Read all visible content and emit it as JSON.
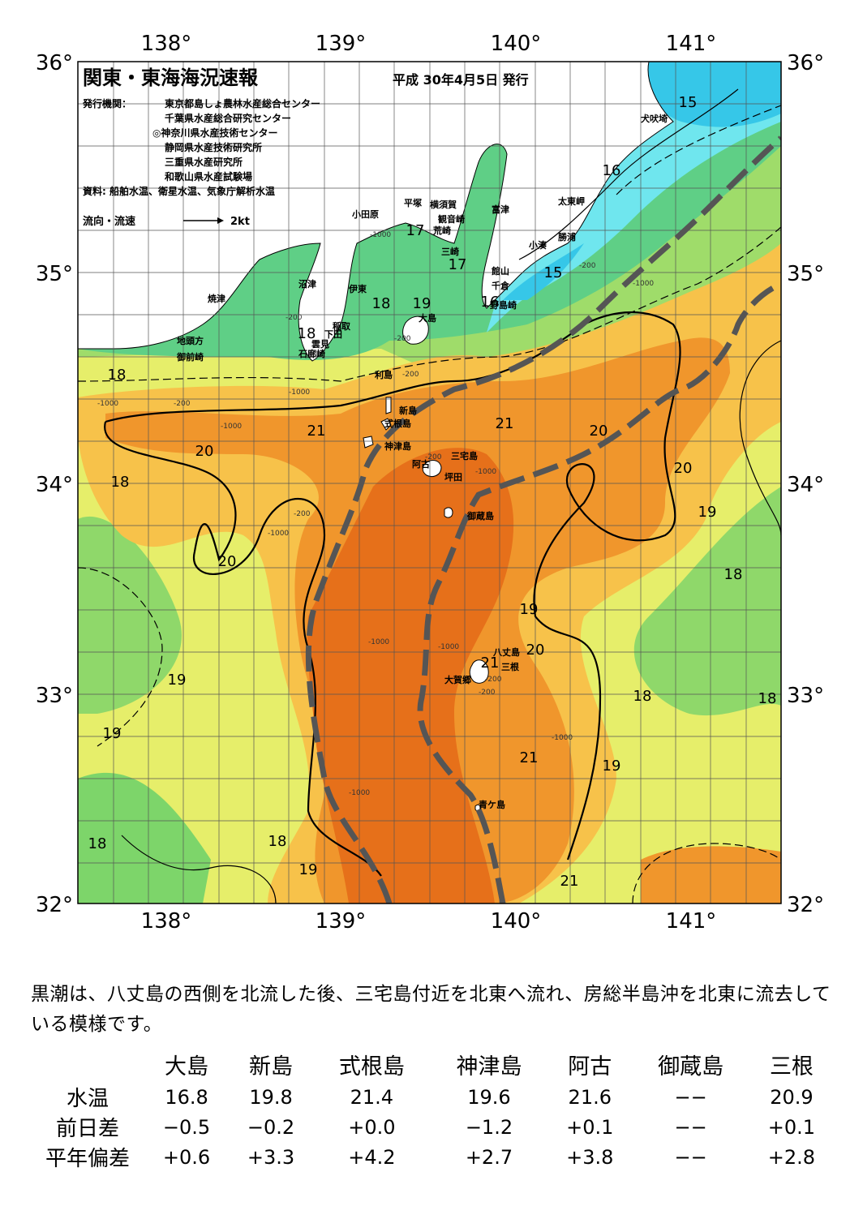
{
  "title": "関東・東海海況速報",
  "issue_date": "平成 30年4月5日 発行",
  "issuers_label": "発行機関：",
  "issuers": [
    "東京都島しょ農林水産総合センター",
    "千葉県水産総合研究センター",
    "◎神奈川県水産技術センター",
    "静岡県水産技術研究所",
    "三重県水産研究所",
    "和歌山県水産試験場"
  ],
  "sources": "資料: 船舶水温、衛星水温、気象庁解析水温",
  "flow_legend": {
    "label": "流向・流速",
    "scale": "2kt"
  },
  "axes": {
    "lon_ticks": [
      "138°",
      "139°",
      "140°",
      "141°"
    ],
    "lat_ticks": [
      "36°",
      "35°",
      "34°",
      "33°",
      "32°"
    ]
  },
  "place_names": [
    "犬吠埼",
    "太東岬",
    "勝浦",
    "小湊",
    "富津",
    "館山",
    "千倉",
    "野島崎",
    "観音崎",
    "横須賀",
    "荒崎",
    "三崎",
    "平塚",
    "小田原",
    "沼津",
    "伊東",
    "稲取",
    "下田",
    "石廊崎",
    "雲見",
    "焼津",
    "地頭方",
    "御前崎",
    "大島",
    "利島",
    "新島",
    "式根島",
    "神津島",
    "三宅島",
    "阿古",
    "坪田",
    "御蔵島",
    "八丈島",
    "三根",
    "大賀郷",
    "青ケ島"
  ],
  "contour_labels": {
    "temperature": [
      "15",
      "16",
      "15",
      "17",
      "17",
      "16",
      "18",
      "18",
      "18",
      "21",
      "20",
      "20",
      "21",
      "20",
      "20",
      "19",
      "18",
      "19",
      "20",
      "21",
      "21",
      "19",
      "18",
      "18",
      "19",
      "19",
      "18",
      "18",
      "19",
      "21",
      "18",
      "19"
    ],
    "depth": [
      "-1000",
      "-200",
      "-1000",
      "-200",
      "-1000",
      "-200",
      "-200",
      "-1000",
      "-200",
      "-1000",
      "-1000",
      "-200",
      "-1000",
      "-200",
      "-1000",
      "-1000",
      "-200",
      "-200",
      "-1000",
      "-1000"
    ]
  },
  "description": "黒潮は、八丈島の西側を北流した後、三宅島付近を北東へ流れ、房総半島沖を北東に流去している模様です。",
  "table": {
    "stations": [
      "大島",
      "新島",
      "式根島",
      "神津島",
      "阿古",
      "御蔵島",
      "三根"
    ],
    "rows": [
      {
        "label": "水温",
        "values": [
          "16.8",
          "19.8",
          "21.4",
          "19.6",
          "21.6",
          "−−",
          "20.9"
        ]
      },
      {
        "label": "前日差",
        "values": [
          "−0.5",
          "−0.2",
          "+0.0",
          "−1.2",
          "+0.1",
          "−−",
          "+0.1"
        ]
      },
      {
        "label": "平年偏差",
        "values": [
          "+0.6",
          "+3.3",
          "+4.2",
          "+2.7",
          "+3.8",
          "−−",
          "+2.8"
        ]
      }
    ]
  },
  "colors": {
    "land": "#ffffff",
    "t15": "#36c7e8",
    "t16": "#6fe6ee",
    "t17": "#5fcf86",
    "t18": "#7dd56a",
    "t19": "#e6ee6a",
    "t20": "#f7c24a",
    "t21": "#f0962c",
    "t22": "#e6701a",
    "kuroshio_axis": "#555555"
  }
}
